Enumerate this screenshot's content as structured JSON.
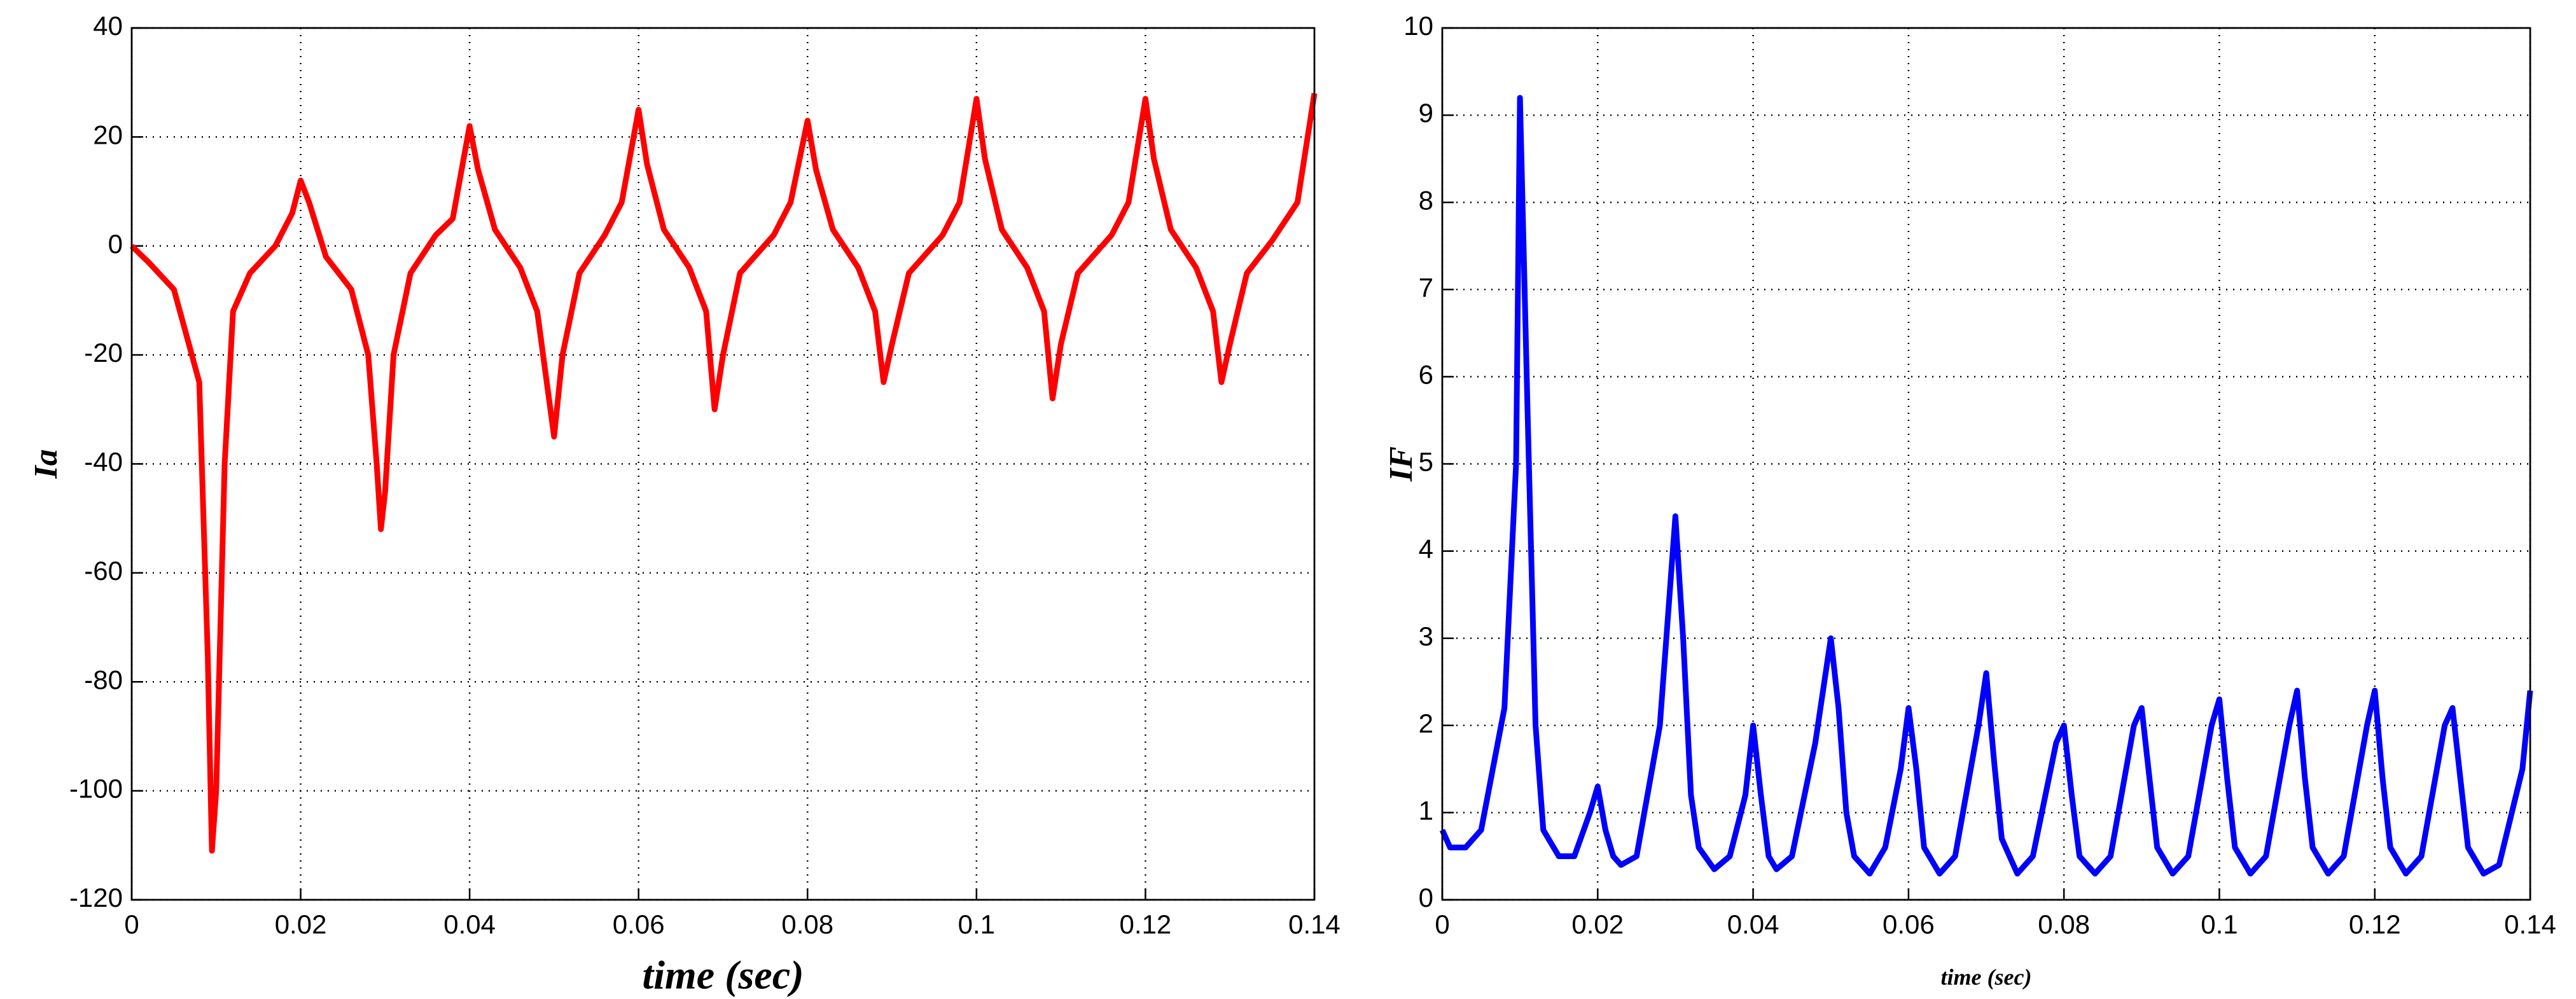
{
  "chart_data": [
    {
      "type": "line",
      "xlabel": "time (sec)",
      "ylabel": "Ia",
      "xlim": [
        0,
        0.14
      ],
      "xticks": [
        0,
        0.02,
        0.04,
        0.06,
        0.08,
        0.1,
        0.12,
        0.14
      ],
      "ylim": [
        -120,
        40
      ],
      "yticks": [
        -120,
        -100,
        -80,
        -60,
        -40,
        -20,
        0,
        20,
        40
      ],
      "grid": true,
      "x": [
        0,
        0.002,
        0.005,
        0.008,
        0.009,
        0.0095,
        0.01,
        0.011,
        0.012,
        0.014,
        0.017,
        0.019,
        0.02,
        0.021,
        0.023,
        0.026,
        0.028,
        0.029,
        0.0295,
        0.03,
        0.031,
        0.033,
        0.036,
        0.038,
        0.04,
        0.041,
        0.043,
        0.046,
        0.048,
        0.05,
        0.051,
        0.053,
        0.056,
        0.058,
        0.06,
        0.061,
        0.063,
        0.066,
        0.068,
        0.069,
        0.07,
        0.072,
        0.076,
        0.078,
        0.08,
        0.081,
        0.083,
        0.086,
        0.088,
        0.089,
        0.09,
        0.092,
        0.096,
        0.098,
        0.1,
        0.101,
        0.103,
        0.106,
        0.108,
        0.109,
        0.11,
        0.112,
        0.116,
        0.118,
        0.12,
        0.121,
        0.123,
        0.126,
        0.128,
        0.129,
        0.13,
        0.132,
        0.135,
        0.138,
        0.14
      ],
      "series": [
        {
          "name": "Ia",
          "color": "#ff0000",
          "values": [
            0,
            -3,
            -8,
            -25,
            -75,
            -111,
            -100,
            -40,
            -12,
            -5,
            0,
            6,
            12,
            8,
            -2,
            -8,
            -20,
            -40,
            -52,
            -45,
            -20,
            -5,
            2,
            5,
            22,
            14,
            3,
            -4,
            -12,
            -35,
            -20,
            -5,
            2,
            8,
            25,
            15,
            3,
            -4,
            -12,
            -30,
            -20,
            -5,
            2,
            8,
            23,
            14,
            3,
            -4,
            -12,
            -25,
            -18,
            -5,
            2,
            8,
            27,
            16,
            3,
            -4,
            -12,
            -28,
            -18,
            -5,
            2,
            8,
            27,
            16,
            3,
            -4,
            -12,
            -25,
            -18,
            -5,
            1,
            8,
            28
          ]
        }
      ]
    },
    {
      "type": "line",
      "xlabel": "time (sec)",
      "ylabel": "IF",
      "xlim": [
        0,
        0.14
      ],
      "xticks": [
        0,
        0.02,
        0.04,
        0.06,
        0.08,
        0.1,
        0.12,
        0.14
      ],
      "ylim": [
        0,
        10
      ],
      "yticks": [
        0,
        1,
        2,
        3,
        4,
        5,
        6,
        7,
        8,
        9,
        10
      ],
      "grid": true,
      "x": [
        0,
        0.001,
        0.003,
        0.005,
        0.008,
        0.0095,
        0.01,
        0.011,
        0.012,
        0.013,
        0.015,
        0.017,
        0.019,
        0.02,
        0.021,
        0.022,
        0.023,
        0.025,
        0.028,
        0.03,
        0.031,
        0.032,
        0.033,
        0.035,
        0.037,
        0.039,
        0.04,
        0.041,
        0.042,
        0.043,
        0.045,
        0.048,
        0.05,
        0.051,
        0.052,
        0.053,
        0.055,
        0.057,
        0.059,
        0.06,
        0.061,
        0.062,
        0.064,
        0.066,
        0.069,
        0.07,
        0.071,
        0.072,
        0.074,
        0.076,
        0.079,
        0.08,
        0.081,
        0.082,
        0.084,
        0.086,
        0.089,
        0.09,
        0.091,
        0.092,
        0.094,
        0.096,
        0.099,
        0.1,
        0.101,
        0.102,
        0.104,
        0.106,
        0.109,
        0.11,
        0.111,
        0.112,
        0.114,
        0.116,
        0.119,
        0.12,
        0.121,
        0.122,
        0.124,
        0.126,
        0.129,
        0.13,
        0.131,
        0.132,
        0.134,
        0.136,
        0.139,
        0.14
      ],
      "series": [
        {
          "name": "IF",
          "color": "#0000ff",
          "values": [
            0.8,
            0.6,
            0.6,
            0.8,
            2.2,
            5,
            9.2,
            5.5,
            2,
            0.8,
            0.5,
            0.5,
            1,
            1.3,
            0.8,
            0.5,
            0.4,
            0.5,
            2,
            4.4,
            3,
            1.2,
            0.6,
            0.35,
            0.5,
            1.2,
            2,
            1.2,
            0.5,
            0.35,
            0.5,
            1.8,
            3,
            2.2,
            1,
            0.5,
            0.3,
            0.6,
            1.5,
            2.2,
            1.5,
            0.6,
            0.3,
            0.5,
            2,
            2.6,
            1.6,
            0.7,
            0.3,
            0.5,
            1.8,
            2,
            1.2,
            0.5,
            0.3,
            0.5,
            2,
            2.2,
            1.4,
            0.6,
            0.3,
            0.5,
            2,
            2.3,
            1.4,
            0.6,
            0.3,
            0.5,
            2,
            2.4,
            1.4,
            0.6,
            0.3,
            0.5,
            2,
            2.4,
            1.4,
            0.6,
            0.3,
            0.5,
            2,
            2.2,
            1.4,
            0.6,
            0.3,
            0.4,
            1.5,
            2.4
          ]
        }
      ]
    }
  ]
}
